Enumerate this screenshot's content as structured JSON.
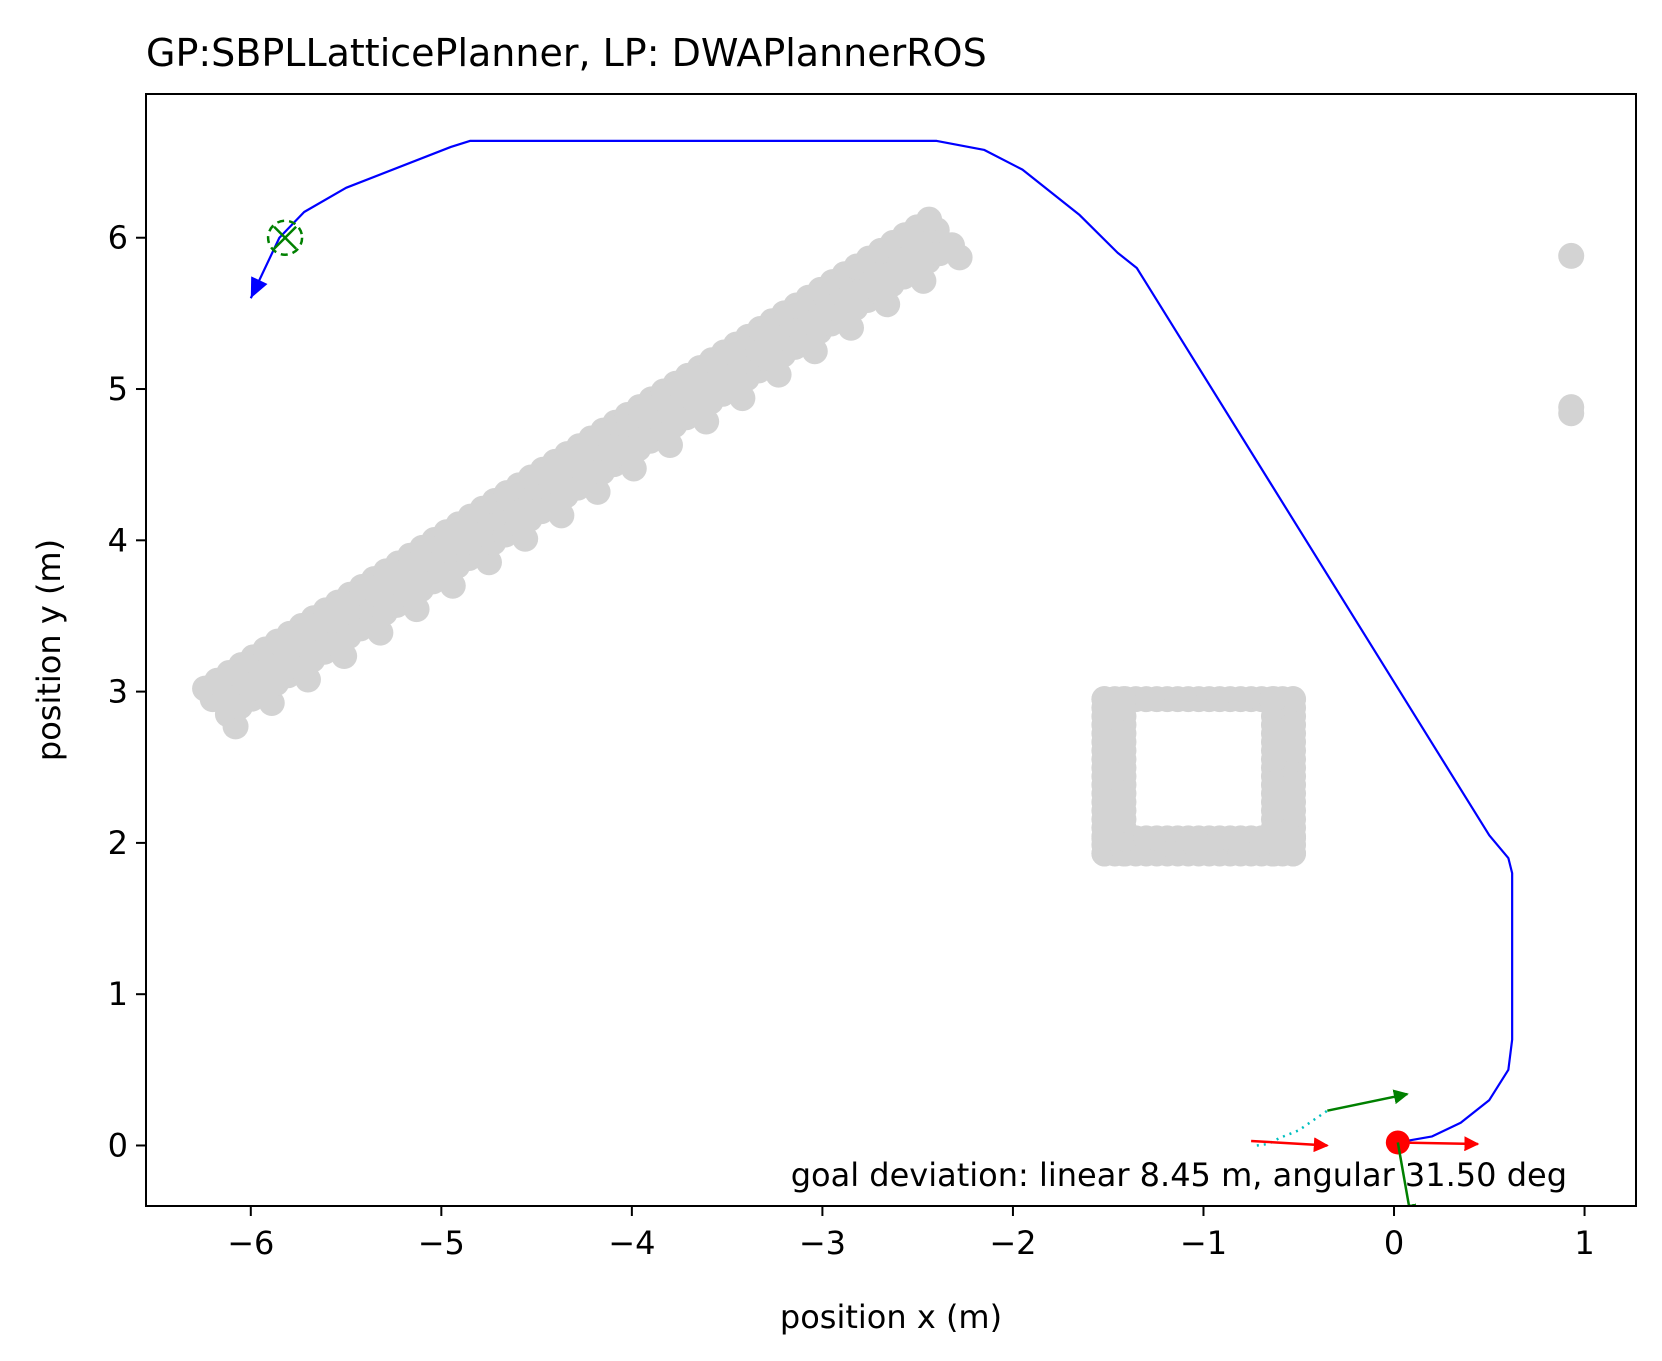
{
  "chart_data": {
    "type": "scatter",
    "title": "GP:SBPLLatticePlanner, LP: DWAPlannerROS",
    "xlabel": "position x (m)",
    "ylabel": "position y (m)",
    "xlim": [
      -6.55,
      1.27
    ],
    "ylim": [
      -0.4,
      6.95
    ],
    "xticks": [
      -6,
      -5,
      -4,
      -3,
      -2,
      -1,
      0,
      1
    ],
    "yticks": [
      0,
      1,
      2,
      3,
      4,
      5,
      6
    ],
    "xtick_labels": [
      "−6",
      "−5",
      "−4",
      "−3",
      "−2",
      "−1",
      "0",
      "1"
    ],
    "ytick_labels": [
      "0",
      "1",
      "2",
      "3",
      "4",
      "5",
      "6"
    ],
    "grid": false,
    "annotation": "goal deviation: linear 8.45 m, angular 31.50 deg",
    "colors": {
      "obstacles": "#d3d3d3",
      "path": "#0000ff",
      "goal": "#008000",
      "robot": "#ff0000",
      "start_trace": "#00bfbf",
      "heading": "#ff0000"
    },
    "obstacles": {
      "diagonal_wall": {
        "from": [
          -6.2,
          2.95
        ],
        "to": [
          -2.4,
          6.05
        ]
      },
      "box": {
        "x": [
          -1.52,
          -0.53
        ],
        "y": [
          1.93,
          2.95
        ]
      },
      "right_points": [
        [
          0.93,
          5.88
        ],
        [
          0.93,
          4.88
        ],
        [
          0.93,
          4.84
        ]
      ]
    },
    "robot_path": {
      "x": [
        0.02,
        0.2,
        0.35,
        0.5,
        0.6,
        0.62,
        0.62,
        0.6,
        0.5,
        -1.35,
        -1.45,
        -1.65,
        -1.95,
        -2.15,
        -2.4,
        -4.85,
        -4.95,
        -5.5,
        -5.72,
        -5.85,
        -6.0
      ],
      "y": [
        0.02,
        0.06,
        0.15,
        0.3,
        0.5,
        0.7,
        1.8,
        1.9,
        2.05,
        5.8,
        5.9,
        6.15,
        6.45,
        6.58,
        6.64,
        6.64,
        6.6,
        6.33,
        6.17,
        6.0,
        5.6
      ]
    },
    "goal": {
      "x": -5.82,
      "y": 6.0
    },
    "robot": {
      "x": 0.02,
      "y": 0.02
    },
    "start_trace": {
      "x": [
        -0.72,
        -0.66,
        -0.6,
        -0.5,
        -0.42,
        -0.35
      ],
      "y": [
        0.0,
        0.01,
        0.05,
        0.1,
        0.17,
        0.23
      ]
    },
    "arrows": [
      {
        "color": "green",
        "x": -0.35,
        "y": 0.23,
        "dx": 0.42,
        "dy": 0.11
      },
      {
        "color": "red",
        "x": -0.75,
        "y": 0.03,
        "dx": 0.4,
        "dy": -0.03
      },
      {
        "color": "red",
        "x": 0.02,
        "y": 0.02,
        "dx": 0.42,
        "dy": -0.01
      },
      {
        "color": "green",
        "x": 0.02,
        "y": 0.02,
        "dx": 0.07,
        "dy": -0.5
      }
    ]
  }
}
